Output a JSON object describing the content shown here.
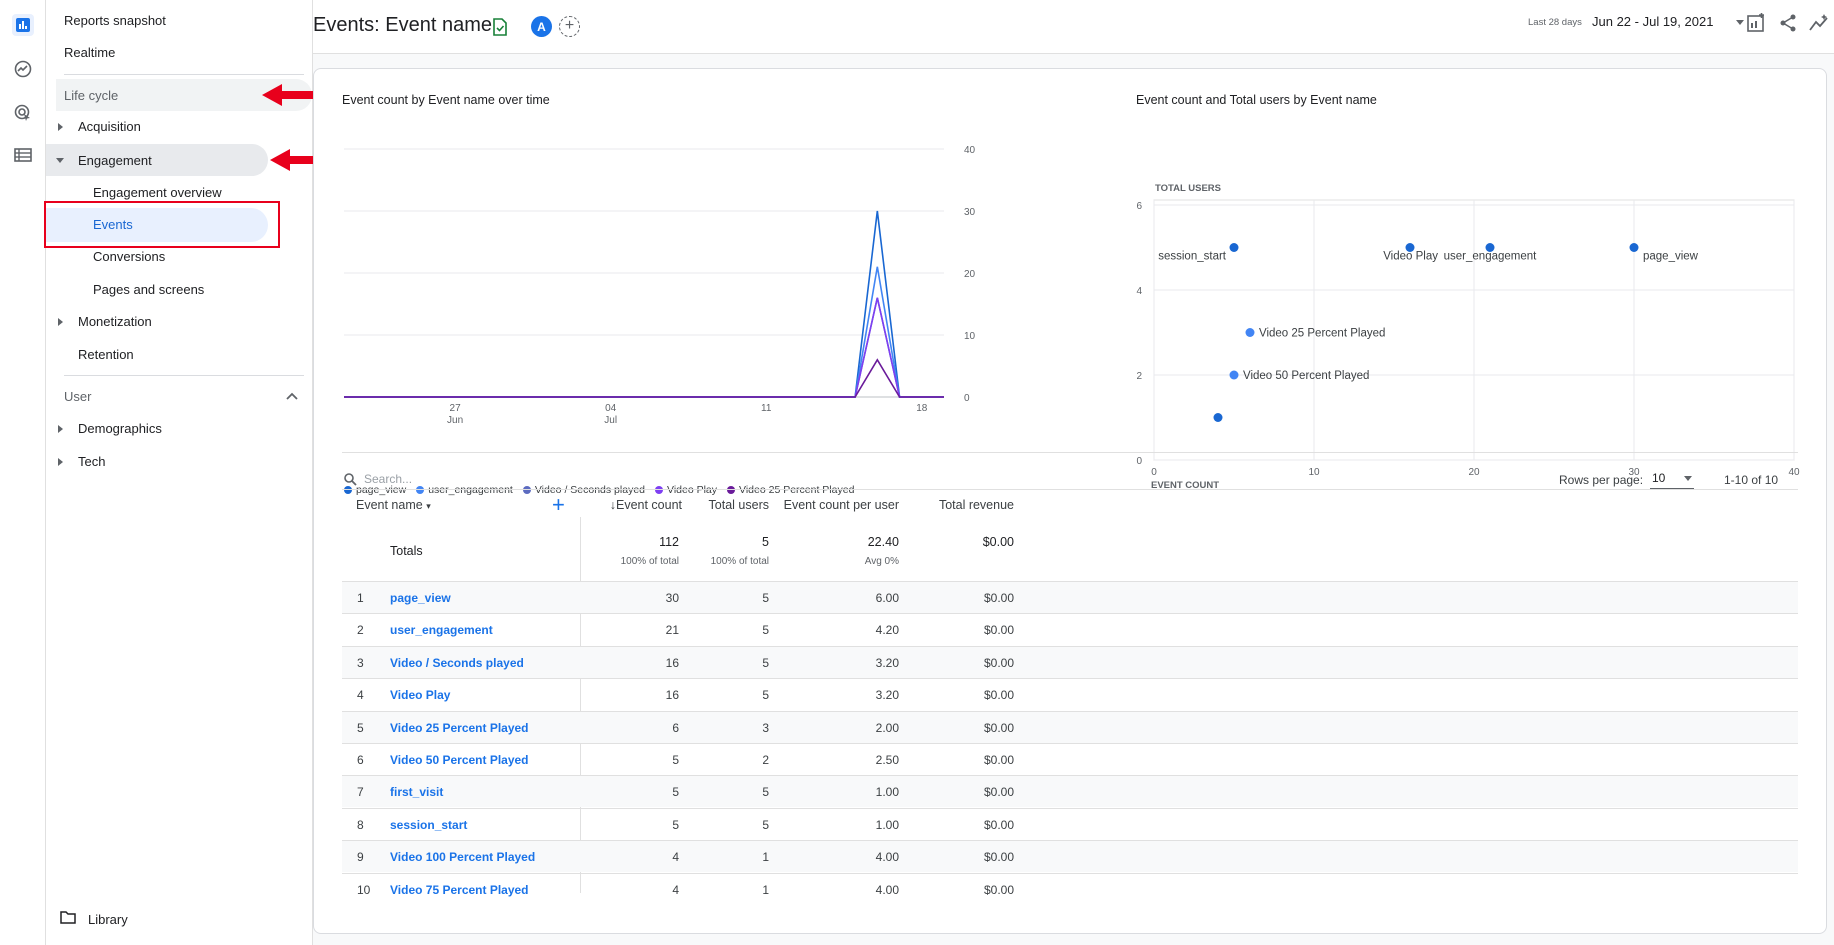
{
  "sidebar": {
    "reports_snapshot": "Reports snapshot",
    "realtime": "Realtime",
    "lifecycle_header": "Life cycle",
    "acquisition": "Acquisition",
    "engagement": "Engagement",
    "engagement_overview": "Engagement overview",
    "events": "Events",
    "conversions": "Conversions",
    "pages_and_screens": "Pages and screens",
    "monetization": "Monetization",
    "retention": "Retention",
    "user_header": "User",
    "demographics": "Demographics",
    "tech": "Tech",
    "library": "Library"
  },
  "header": {
    "title": "Events: Event name",
    "avatar_letter": "A",
    "date_prefix": "Last 28 days",
    "date_range": "Jun 22 - Jul 19, 2021"
  },
  "line_chart": {
    "title": "Event count by Event name over time",
    "x_ticks": [
      {
        "top": "27",
        "bottom": "Jun"
      },
      {
        "top": "04",
        "bottom": "Jul"
      },
      {
        "top": "11",
        "bottom": ""
      },
      {
        "top": "18",
        "bottom": ""
      }
    ],
    "y_ticks": [
      "40",
      "30",
      "20",
      "10",
      "0"
    ],
    "legend": [
      {
        "name": "page_view",
        "color": "#1967d2"
      },
      {
        "name": "user_engagement",
        "color": "#4285f4"
      },
      {
        "name": "Video / Seconds played",
        "color": "#5c6bc0"
      },
      {
        "name": "Video Play",
        "color": "#7e3ff2"
      },
      {
        "name": "Video 25 Percent Played",
        "color": "#6a1b9a"
      }
    ]
  },
  "scatter_chart": {
    "title": "Event count and Total users by Event name",
    "y_axis_label": "TOTAL USERS",
    "x_axis_label": "EVENT COUNT",
    "x_ticks": [
      "0",
      "10",
      "20",
      "30",
      "40"
    ],
    "y_ticks": [
      "6",
      "4",
      "2",
      "0"
    ],
    "point_labels": [
      "session_start",
      "Video Play",
      "user_engagement",
      "page_view",
      "Video 25 Percent Played",
      "Video 50 Percent Played"
    ]
  },
  "chart_data": [
    {
      "type": "line",
      "title": "Event count by Event name over time",
      "x": [
        "Jun 22",
        "Jun 23",
        "Jun 24",
        "Jun 25",
        "Jun 26",
        "Jun 27",
        "Jun 28",
        "Jun 29",
        "Jun 30",
        "Jul 01",
        "Jul 02",
        "Jul 03",
        "Jul 04",
        "Jul 05",
        "Jul 06",
        "Jul 07",
        "Jul 08",
        "Jul 09",
        "Jul 10",
        "Jul 11",
        "Jul 12",
        "Jul 13",
        "Jul 14",
        "Jul 15",
        "Jul 16",
        "Jul 17",
        "Jul 18",
        "Jul 19"
      ],
      "ylim": [
        0,
        40
      ],
      "series": [
        {
          "name": "page_view",
          "values": [
            0,
            0,
            0,
            0,
            0,
            0,
            0,
            0,
            0,
            0,
            0,
            0,
            0,
            0,
            0,
            0,
            0,
            0,
            0,
            0,
            0,
            0,
            0,
            0,
            30,
            0,
            0,
            0
          ]
        },
        {
          "name": "user_engagement",
          "values": [
            0,
            0,
            0,
            0,
            0,
            0,
            0,
            0,
            0,
            0,
            0,
            0,
            0,
            0,
            0,
            0,
            0,
            0,
            0,
            0,
            0,
            0,
            0,
            0,
            21,
            0,
            0,
            0
          ]
        },
        {
          "name": "Video / Seconds played",
          "values": [
            0,
            0,
            0,
            0,
            0,
            0,
            0,
            0,
            0,
            0,
            0,
            0,
            0,
            0,
            0,
            0,
            0,
            0,
            0,
            0,
            0,
            0,
            0,
            0,
            16,
            0,
            0,
            0
          ]
        },
        {
          "name": "Video Play",
          "values": [
            0,
            0,
            0,
            0,
            0,
            0,
            0,
            0,
            0,
            0,
            0,
            0,
            0,
            0,
            0,
            0,
            0,
            0,
            0,
            0,
            0,
            0,
            0,
            0,
            16,
            0,
            0,
            0
          ]
        },
        {
          "name": "Video 25 Percent Played",
          "values": [
            0,
            0,
            0,
            0,
            0,
            0,
            0,
            0,
            0,
            0,
            0,
            0,
            0,
            0,
            0,
            0,
            0,
            0,
            0,
            0,
            0,
            0,
            0,
            0,
            6,
            0,
            0,
            0
          ]
        }
      ]
    },
    {
      "type": "scatter",
      "title": "Event count and Total users by Event name",
      "xlabel": "EVENT COUNT",
      "ylabel": "TOTAL USERS",
      "xlim": [
        0,
        40
      ],
      "ylim": [
        0,
        6
      ],
      "points": [
        {
          "label": "page_view",
          "x": 30,
          "y": 5
        },
        {
          "label": "user_engagement",
          "x": 21,
          "y": 5
        },
        {
          "label": "Video Play",
          "x": 16,
          "y": 5
        },
        {
          "label": "session_start",
          "x": 5,
          "y": 5
        },
        {
          "label": "Video 25 Percent Played",
          "x": 6,
          "y": 3
        },
        {
          "label": "Video 50 Percent Played",
          "x": 5,
          "y": 2
        },
        {
          "label": "",
          "x": 4,
          "y": 1
        }
      ]
    }
  ],
  "table": {
    "search_placeholder": "Search...",
    "rows_per_page_label": "Rows per page:",
    "rows_per_page_value": "10",
    "pagination": "1-10 of 10",
    "headers": {
      "event_name": "Event name",
      "event_count": "Event count",
      "total_users": "Total users",
      "count_per_user": "Event count per user",
      "total_revenue": "Total revenue"
    },
    "totals": {
      "label": "Totals",
      "event_count": "112",
      "event_count_sub": "100% of total",
      "total_users": "5",
      "total_users_sub": "100% of total",
      "count_per_user": "22.40",
      "count_per_user_sub": "Avg 0%",
      "total_revenue": "$0.00"
    },
    "rows": [
      {
        "idx": "1",
        "name": "page_view",
        "count": "30",
        "users": "5",
        "per_user": "6.00",
        "revenue": "$0.00"
      },
      {
        "idx": "2",
        "name": "user_engagement",
        "count": "21",
        "users": "5",
        "per_user": "4.20",
        "revenue": "$0.00"
      },
      {
        "idx": "3",
        "name": "Video / Seconds played",
        "count": "16",
        "users": "5",
        "per_user": "3.20",
        "revenue": "$0.00"
      },
      {
        "idx": "4",
        "name": "Video Play",
        "count": "16",
        "users": "5",
        "per_user": "3.20",
        "revenue": "$0.00"
      },
      {
        "idx": "5",
        "name": "Video 25 Percent Played",
        "count": "6",
        "users": "3",
        "per_user": "2.00",
        "revenue": "$0.00"
      },
      {
        "idx": "6",
        "name": "Video 50 Percent Played",
        "count": "5",
        "users": "2",
        "per_user": "2.50",
        "revenue": "$0.00"
      },
      {
        "idx": "7",
        "name": "first_visit",
        "count": "5",
        "users": "5",
        "per_user": "1.00",
        "revenue": "$0.00"
      },
      {
        "idx": "8",
        "name": "session_start",
        "count": "5",
        "users": "5",
        "per_user": "1.00",
        "revenue": "$0.00"
      },
      {
        "idx": "9",
        "name": "Video 100 Percent Played",
        "count": "4",
        "users": "1",
        "per_user": "4.00",
        "revenue": "$0.00"
      },
      {
        "idx": "10",
        "name": "Video 75 Percent Played",
        "count": "4",
        "users": "1",
        "per_user": "4.00",
        "revenue": "$0.00"
      }
    ]
  },
  "colors": {
    "accent": "#1a73e8",
    "annotation_red": "#e8001c"
  }
}
